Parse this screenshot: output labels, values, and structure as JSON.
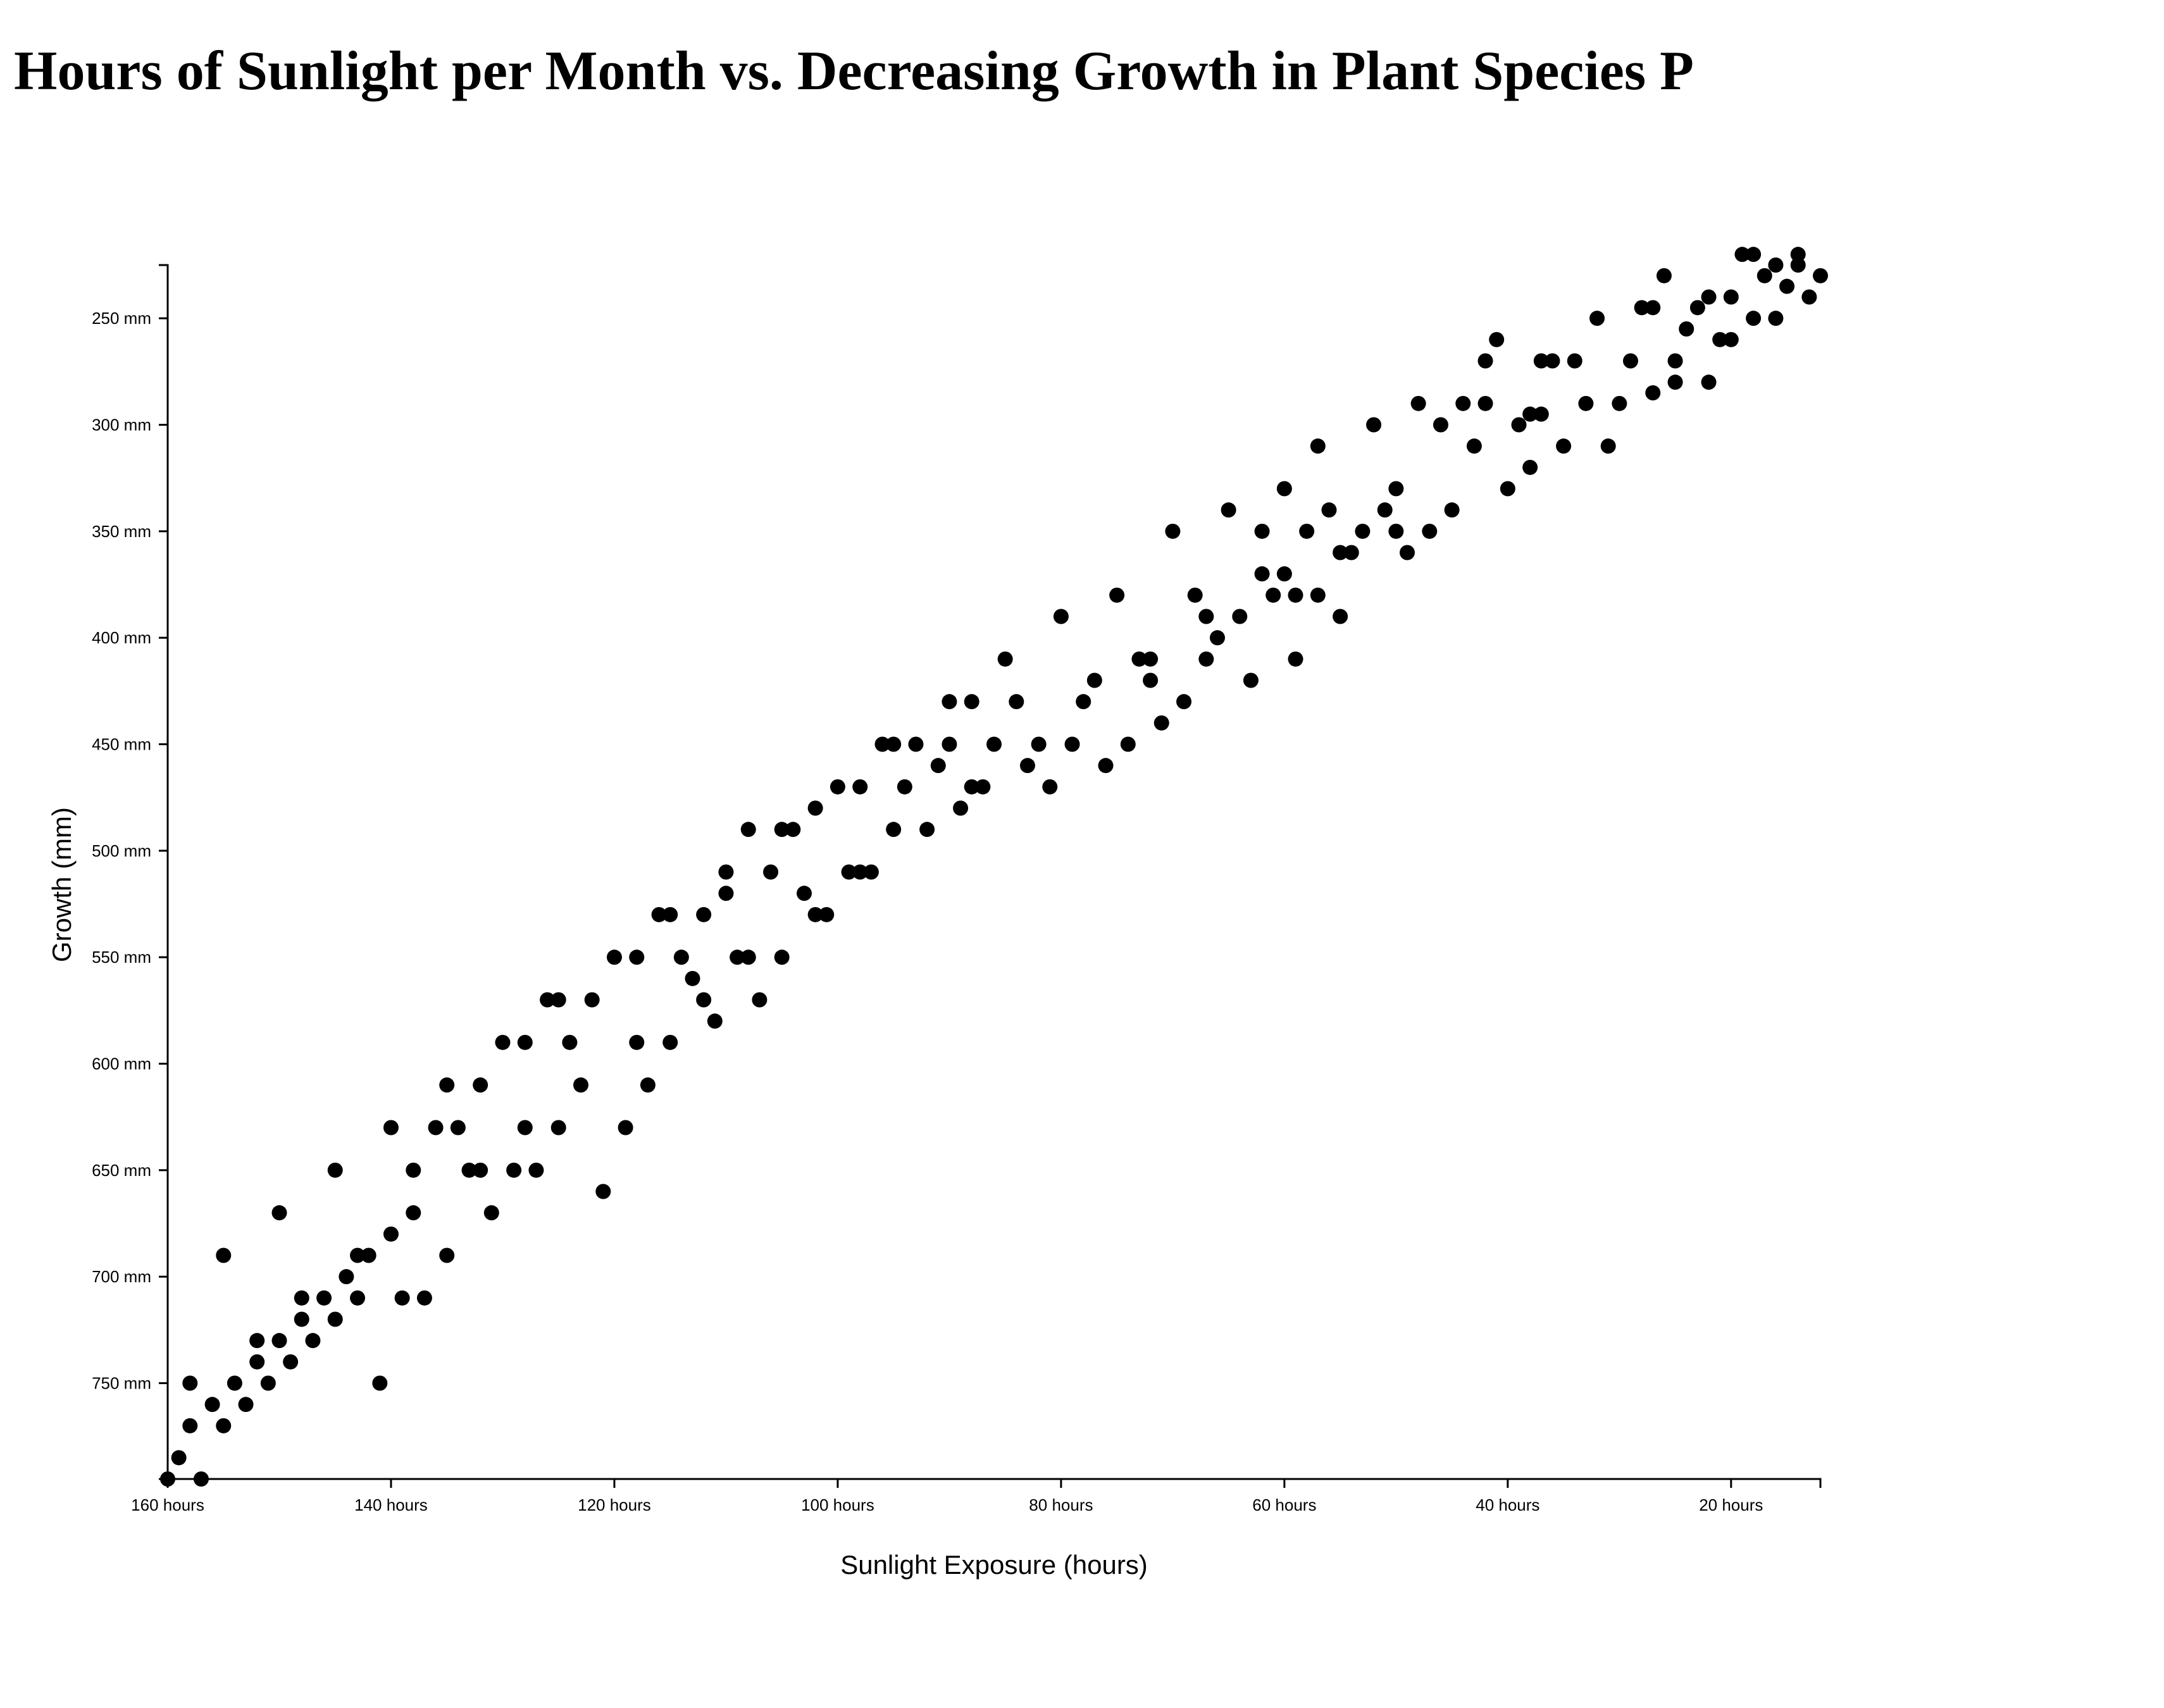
{
  "chart_data": {
    "type": "scatter",
    "title": "Hours of Sunlight per Month vs. Decreasing Growth in Plant Species P",
    "xlabel": "Sunlight Exposure (hours)",
    "ylabel": "Growth (mm)",
    "xlim": [
      160,
      12
    ],
    "ylim": [
      795,
      225
    ],
    "x_reversed": true,
    "y_reversed": true,
    "grid": false,
    "legend": "none",
    "point_color": "#000000",
    "x_ticks": [
      {
        "value": 160,
        "label": "160 hours"
      },
      {
        "value": 140,
        "label": "140 hours"
      },
      {
        "value": 120,
        "label": "120 hours"
      },
      {
        "value": 100,
        "label": "100 hours"
      },
      {
        "value": 80,
        "label": "80 hours"
      },
      {
        "value": 60,
        "label": "60 hours"
      },
      {
        "value": 40,
        "label": "40 hours"
      },
      {
        "value": 20,
        "label": "20 hours"
      }
    ],
    "y_ticks": [
      {
        "value": 250,
        "label": "250 mm"
      },
      {
        "value": 300,
        "label": "300 mm"
      },
      {
        "value": 350,
        "label": "350 mm"
      },
      {
        "value": 400,
        "label": "400 mm"
      },
      {
        "value": 450,
        "label": "450 mm"
      },
      {
        "value": 500,
        "label": "500 mm"
      },
      {
        "value": 550,
        "label": "550 mm"
      },
      {
        "value": 600,
        "label": "600 mm"
      },
      {
        "value": 650,
        "label": "650 mm"
      },
      {
        "value": 700,
        "label": "700 mm"
      },
      {
        "value": 750,
        "label": "750 mm"
      }
    ],
    "points": [
      [
        160,
        795
      ],
      [
        159,
        785
      ],
      [
        158,
        770
      ],
      [
        158,
        750
      ],
      [
        157,
        795
      ],
      [
        156,
        760
      ],
      [
        155,
        770
      ],
      [
        155,
        690
      ],
      [
        154,
        750
      ],
      [
        153,
        760
      ],
      [
        152,
        740
      ],
      [
        152,
        730
      ],
      [
        151,
        750
      ],
      [
        150,
        730
      ],
      [
        150,
        670
      ],
      [
        149,
        740
      ],
      [
        148,
        720
      ],
      [
        148,
        710
      ],
      [
        147,
        730
      ],
      [
        146,
        710
      ],
      [
        145,
        720
      ],
      [
        145,
        650
      ],
      [
        144,
        700
      ],
      [
        143,
        710
      ],
      [
        143,
        690
      ],
      [
        142,
        690
      ],
      [
        141,
        750
      ],
      [
        140,
        680
      ],
      [
        140,
        630
      ],
      [
        139,
        710
      ],
      [
        138,
        670
      ],
      [
        138,
        650
      ],
      [
        137,
        710
      ],
      [
        136,
        630
      ],
      [
        135,
        690
      ],
      [
        135,
        610
      ],
      [
        134,
        630
      ],
      [
        133,
        650
      ],
      [
        132,
        650
      ],
      [
        132,
        610
      ],
      [
        131,
        670
      ],
      [
        130,
        590
      ],
      [
        129,
        650
      ],
      [
        128,
        630
      ],
      [
        128,
        590
      ],
      [
        127,
        650
      ],
      [
        126,
        570
      ],
      [
        125,
        630
      ],
      [
        125,
        570
      ],
      [
        124,
        590
      ],
      [
        123,
        610
      ],
      [
        122,
        570
      ],
      [
        121,
        660
      ],
      [
        120,
        550
      ],
      [
        119,
        630
      ],
      [
        118,
        590
      ],
      [
        118,
        550
      ],
      [
        117,
        610
      ],
      [
        116,
        530
      ],
      [
        115,
        590
      ],
      [
        115,
        530
      ],
      [
        114,
        550
      ],
      [
        113,
        560
      ],
      [
        112,
        570
      ],
      [
        112,
        530
      ],
      [
        111,
        580
      ],
      [
        110,
        520
      ],
      [
        110,
        510
      ],
      [
        109,
        550
      ],
      [
        108,
        550
      ],
      [
        108,
        490
      ],
      [
        107,
        570
      ],
      [
        106,
        510
      ],
      [
        105,
        550
      ],
      [
        105,
        490
      ],
      [
        104,
        490
      ],
      [
        103,
        520
      ],
      [
        102,
        530
      ],
      [
        102,
        480
      ],
      [
        101,
        530
      ],
      [
        100,
        470
      ],
      [
        99,
        510
      ],
      [
        98,
        510
      ],
      [
        98,
        470
      ],
      [
        97,
        510
      ],
      [
        96,
        450
      ],
      [
        95,
        490
      ],
      [
        95,
        450
      ],
      [
        94,
        470
      ],
      [
        93,
        450
      ],
      [
        92,
        490
      ],
      [
        91,
        460
      ],
      [
        90,
        450
      ],
      [
        90,
        430
      ],
      [
        89,
        480
      ],
      [
        88,
        470
      ],
      [
        88,
        430
      ],
      [
        87,
        470
      ],
      [
        86,
        450
      ],
      [
        85,
        410
      ],
      [
        84,
        430
      ],
      [
        83,
        460
      ],
      [
        82,
        450
      ],
      [
        81,
        470
      ],
      [
        80,
        390
      ],
      [
        79,
        450
      ],
      [
        78,
        430
      ],
      [
        77,
        420
      ],
      [
        76,
        460
      ],
      [
        75,
        380
      ],
      [
        74,
        450
      ],
      [
        73,
        410
      ],
      [
        72,
        410
      ],
      [
        72,
        420
      ],
      [
        71,
        440
      ],
      [
        70,
        350
      ],
      [
        69,
        430
      ],
      [
        68,
        380
      ],
      [
        67,
        390
      ],
      [
        67,
        410
      ],
      [
        66,
        400
      ],
      [
        65,
        340
      ],
      [
        64,
        390
      ],
      [
        63,
        420
      ],
      [
        62,
        350
      ],
      [
        62,
        370
      ],
      [
        61,
        380
      ],
      [
        60,
        330
      ],
      [
        60,
        370
      ],
      [
        59,
        410
      ],
      [
        59,
        380
      ],
      [
        58,
        350
      ],
      [
        57,
        380
      ],
      [
        57,
        310
      ],
      [
        56,
        340
      ],
      [
        55,
        360
      ],
      [
        55,
        390
      ],
      [
        54,
        360
      ],
      [
        53,
        350
      ],
      [
        52,
        300
      ],
      [
        51,
        340
      ],
      [
        50,
        350
      ],
      [
        50,
        330
      ],
      [
        49,
        360
      ],
      [
        48,
        290
      ],
      [
        47,
        350
      ],
      [
        46,
        300
      ],
      [
        45,
        340
      ],
      [
        44,
        290
      ],
      [
        43,
        310
      ],
      [
        42,
        290
      ],
      [
        42,
        270
      ],
      [
        41,
        260
      ],
      [
        40,
        330
      ],
      [
        39,
        300
      ],
      [
        38,
        320
      ],
      [
        38,
        295
      ],
      [
        37,
        295
      ],
      [
        37,
        270
      ],
      [
        36,
        270
      ],
      [
        35,
        310
      ],
      [
        34,
        270
      ],
      [
        33,
        290
      ],
      [
        32,
        250
      ],
      [
        31,
        310
      ],
      [
        30,
        290
      ],
      [
        29,
        270
      ],
      [
        28,
        245
      ],
      [
        27,
        245
      ],
      [
        27,
        285
      ],
      [
        26,
        230
      ],
      [
        25,
        270
      ],
      [
        25,
        280
      ],
      [
        24,
        255
      ],
      [
        23,
        245
      ],
      [
        22,
        280
      ],
      [
        22,
        240
      ],
      [
        21,
        260
      ],
      [
        20,
        260
      ],
      [
        20,
        240
      ],
      [
        19,
        220
      ],
      [
        18,
        250
      ],
      [
        18,
        220
      ],
      [
        17,
        230
      ],
      [
        16,
        250
      ],
      [
        16,
        225
      ],
      [
        15,
        235
      ],
      [
        14,
        225
      ],
      [
        14,
        220
      ],
      [
        13,
        240
      ],
      [
        12,
        230
      ]
    ]
  }
}
